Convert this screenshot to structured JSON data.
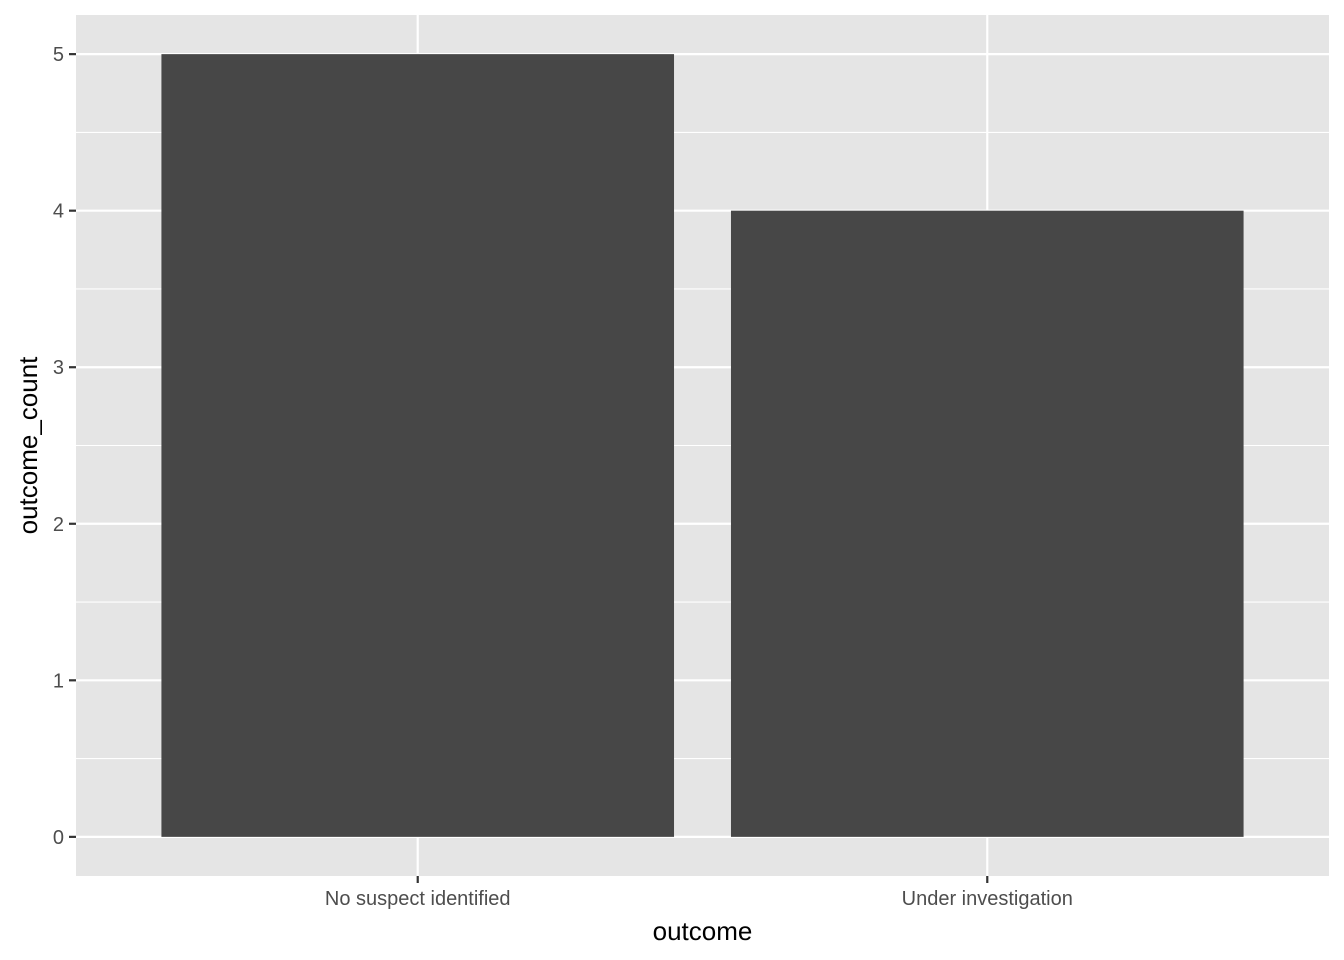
{
  "chart_data": {
    "type": "bar",
    "categories": [
      "No suspect identified",
      "Under investigation"
    ],
    "values": [
      5,
      4
    ],
    "title": "",
    "xlabel": "outcome",
    "ylabel": "outcome_count",
    "ylim": [
      -0.25,
      5.25
    ],
    "yticks": [
      0,
      1,
      2,
      3,
      4,
      5
    ],
    "grid": true,
    "legend": "none",
    "colors": {
      "panel": "#e5e5e5",
      "grid_major": "#ffffff",
      "bar": "#474747",
      "tick_label": "#4d4d4d",
      "axis_title": "#000000"
    }
  }
}
